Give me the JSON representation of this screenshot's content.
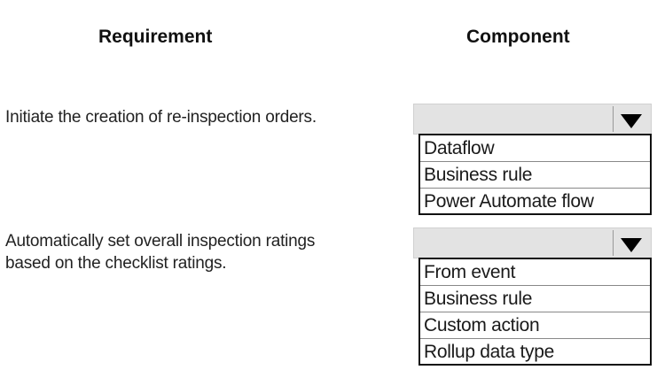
{
  "headers": {
    "requirement": "Requirement",
    "component": "Component"
  },
  "questions": [
    {
      "requirement_lines": [
        "Initiate the creation of re-inspection orders."
      ],
      "selected": "",
      "options": [
        "Dataflow",
        "Business rule",
        "Power Automate flow"
      ]
    },
    {
      "requirement_lines": [
        "Automatically set overall inspection ratings",
        "based on the checklist ratings."
      ],
      "selected": "",
      "options": [
        "From event",
        "Business rule",
        "Custom action",
        "Rollup data type"
      ]
    }
  ],
  "icons": {
    "dropdown": "triangle-down-icon"
  }
}
